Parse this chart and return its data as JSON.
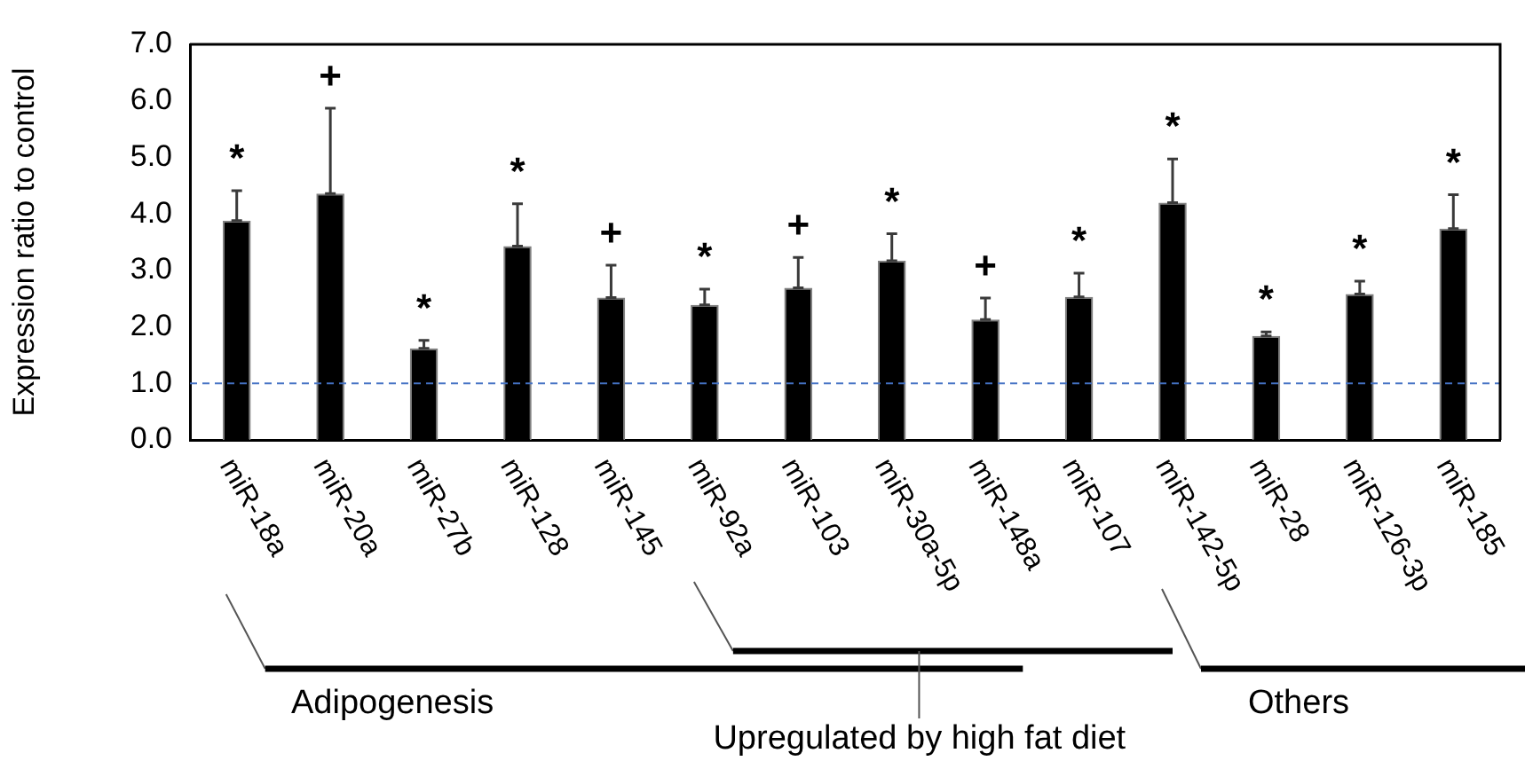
{
  "chart_data": {
    "type": "bar",
    "ylabel": "Expression ratio to control",
    "categories": [
      "miR-18a",
      "miR-20a",
      "miR-27b",
      "miR-128",
      "miR-145",
      "miR-92a",
      "miR-103",
      "miR-30a-5p",
      "miR-148a",
      "miR-107",
      "miR-142-5p",
      "miR-28",
      "miR-126-3p",
      "miR-185"
    ],
    "values": [
      3.88,
      4.36,
      1.62,
      3.43,
      2.52,
      2.39,
      2.69,
      3.17,
      2.13,
      2.53,
      4.2,
      1.84,
      2.58,
      3.74
    ],
    "errors": [
      [
        3.88,
        4.41
      ],
      [
        4.36,
        5.87
      ],
      [
        1.62,
        1.76
      ],
      [
        3.43,
        4.18
      ],
      [
        2.52,
        3.09
      ],
      [
        2.39,
        2.67
      ],
      [
        2.69,
        3.23
      ],
      [
        3.17,
        3.65
      ],
      [
        2.13,
        2.51
      ],
      [
        2.53,
        2.95
      ],
      [
        4.2,
        4.97
      ],
      [
        1.84,
        1.91
      ],
      [
        2.58,
        2.81
      ],
      [
        3.74,
        4.34
      ]
    ],
    "color": "#000000",
    "ylim": [
      0,
      7
    ],
    "yticks": [
      {
        "value": 0,
        "label": "0.0"
      },
      {
        "value": 1,
        "label": "1.0"
      },
      {
        "value": 2,
        "label": "2.0"
      },
      {
        "value": 3,
        "label": "3.0"
      },
      {
        "value": 4,
        "label": "4.0"
      },
      {
        "value": 5,
        "label": "5.0"
      },
      {
        "value": 6,
        "label": "6.0"
      },
      {
        "value": 7,
        "label": "7.0"
      }
    ],
    "ref_lines": [
      {
        "axis": "y",
        "value": 1,
        "color": "#4472c4",
        "line_style": "dashed"
      }
    ],
    "annotations": [
      "*",
      "+",
      "*",
      "*",
      "+",
      "*",
      "+",
      "*",
      "+",
      "*",
      "*",
      "*",
      "*",
      "*",
      "Adipogenesis",
      "Upregulated by high fat diet",
      "Others"
    ],
    "grid": false,
    "legend": false
  }
}
